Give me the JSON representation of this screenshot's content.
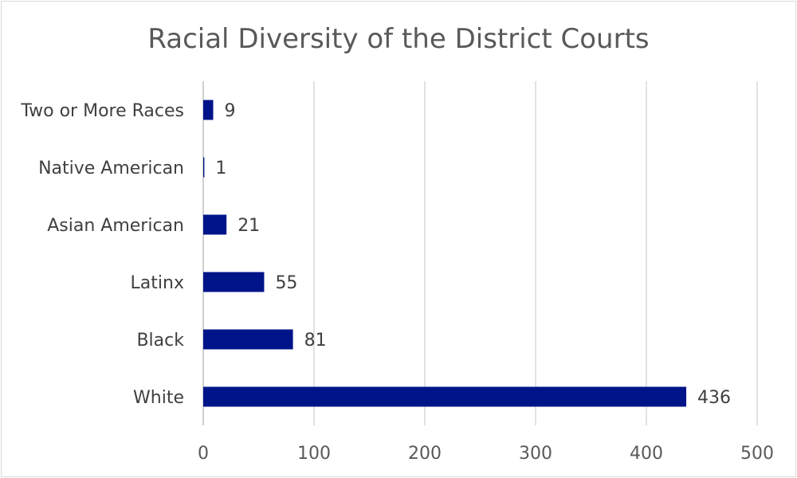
{
  "chart_data": {
    "type": "bar",
    "orientation": "horizontal",
    "title": "Racial Diversity of the District Courts",
    "categories": [
      "White",
      "Black",
      "Latinx",
      "Asian American",
      "Native American",
      "Two or More Races"
    ],
    "values": [
      436,
      81,
      55,
      21,
      1,
      9
    ],
    "xlim": [
      0,
      500
    ],
    "x_ticks": [
      0,
      100,
      200,
      300,
      400,
      500
    ],
    "xlabel": "",
    "ylabel": "",
    "grid": "vertical",
    "legend": "none",
    "data_labels": true,
    "bar_color": "#001489"
  }
}
